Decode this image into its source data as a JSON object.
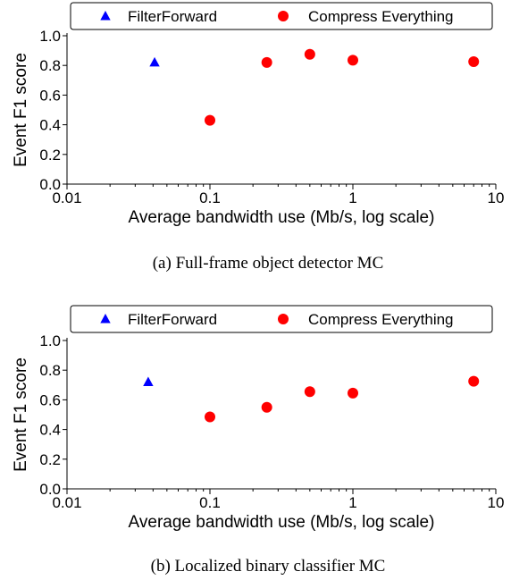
{
  "chart_data": [
    {
      "type": "scatter",
      "panel": "a",
      "caption": "(a) Full-frame object detector MC",
      "xlabel": "Average bandwidth use (Mb/s, log scale)",
      "ylabel": "Event F1 score",
      "xscale": "log",
      "xlim": [
        0.01,
        10
      ],
      "ylim": [
        0.0,
        1.0
      ],
      "x_ticks": [
        0.01,
        0.1,
        1,
        10
      ],
      "x_tick_labels": [
        "0.01",
        "0.1",
        "1",
        "10"
      ],
      "y_ticks": [
        0.0,
        0.2,
        0.4,
        0.6,
        0.8,
        1.0
      ],
      "y_tick_labels": [
        "0.0",
        "0.2",
        "0.4",
        "0.6",
        "0.8",
        "1.0"
      ],
      "grid": false,
      "legend_position": "top",
      "series": [
        {
          "name": "FilterForward",
          "marker": "triangle",
          "color": "#0000ff",
          "points": [
            [
              0.041,
              0.82
            ]
          ]
        },
        {
          "name": "Compress Everything",
          "marker": "circle",
          "color": "#ff0000",
          "points": [
            [
              0.1,
              0.43
            ],
            [
              0.25,
              0.82
            ],
            [
              0.5,
              0.875
            ],
            [
              1.0,
              0.835
            ],
            [
              7.0,
              0.825
            ]
          ]
        }
      ]
    },
    {
      "type": "scatter",
      "panel": "b",
      "caption": "(b) Localized binary classifier MC",
      "xlabel": "Average bandwidth use (Mb/s, log scale)",
      "ylabel": "Event F1 score",
      "xscale": "log",
      "xlim": [
        0.01,
        10
      ],
      "ylim": [
        0.0,
        1.0
      ],
      "x_ticks": [
        0.01,
        0.1,
        1,
        10
      ],
      "x_tick_labels": [
        "0.01",
        "0.1",
        "1",
        "10"
      ],
      "y_ticks": [
        0.0,
        0.2,
        0.4,
        0.6,
        0.8,
        1.0
      ],
      "y_tick_labels": [
        "0.0",
        "0.2",
        "0.4",
        "0.6",
        "0.8",
        "1.0"
      ],
      "grid": false,
      "legend_position": "top",
      "series": [
        {
          "name": "FilterForward",
          "marker": "triangle",
          "color": "#0000ff",
          "points": [
            [
              0.037,
              0.72
            ]
          ]
        },
        {
          "name": "Compress Everything",
          "marker": "circle",
          "color": "#ff0000",
          "points": [
            [
              0.1,
              0.485
            ],
            [
              0.25,
              0.55
            ],
            [
              0.5,
              0.655
            ],
            [
              1.0,
              0.645
            ],
            [
              7.0,
              0.725
            ]
          ]
        }
      ]
    }
  ]
}
